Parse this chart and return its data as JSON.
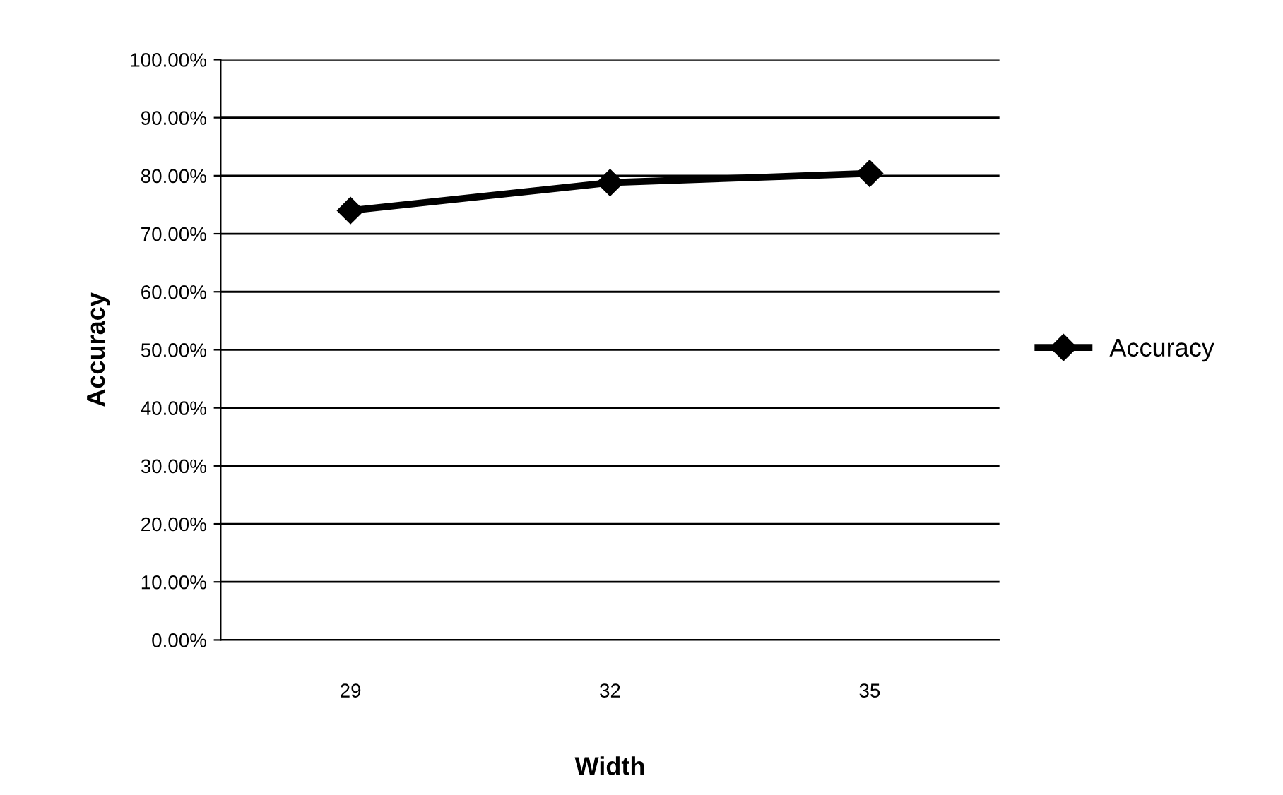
{
  "chart_data": {
    "type": "line",
    "xlabel": "Width",
    "ylabel": "Accuracy",
    "categories": [
      "29",
      "32",
      "35"
    ],
    "series": [
      {
        "name": "Accuracy",
        "color": "#000000",
        "values": [
          74.0,
          78.8,
          80.4
        ]
      }
    ],
    "ylim": [
      0,
      100
    ],
    "yticks": [
      {
        "value": 0,
        "label": "0.00%"
      },
      {
        "value": 10,
        "label": "10.00%"
      },
      {
        "value": 20,
        "label": "20.00%"
      },
      {
        "value": 30,
        "label": "30.00%"
      },
      {
        "value": 40,
        "label": "40.00%"
      },
      {
        "value": 50,
        "label": "50.00%"
      },
      {
        "value": 60,
        "label": "60.00%"
      },
      {
        "value": 70,
        "label": "70.00%"
      },
      {
        "value": 80,
        "label": "80.00%"
      },
      {
        "value": 90,
        "label": "90.00%"
      },
      {
        "value": 100,
        "label": "100.00%"
      }
    ],
    "grid": "y",
    "legend": "right",
    "marker": "diamond",
    "line_style": "solid"
  }
}
